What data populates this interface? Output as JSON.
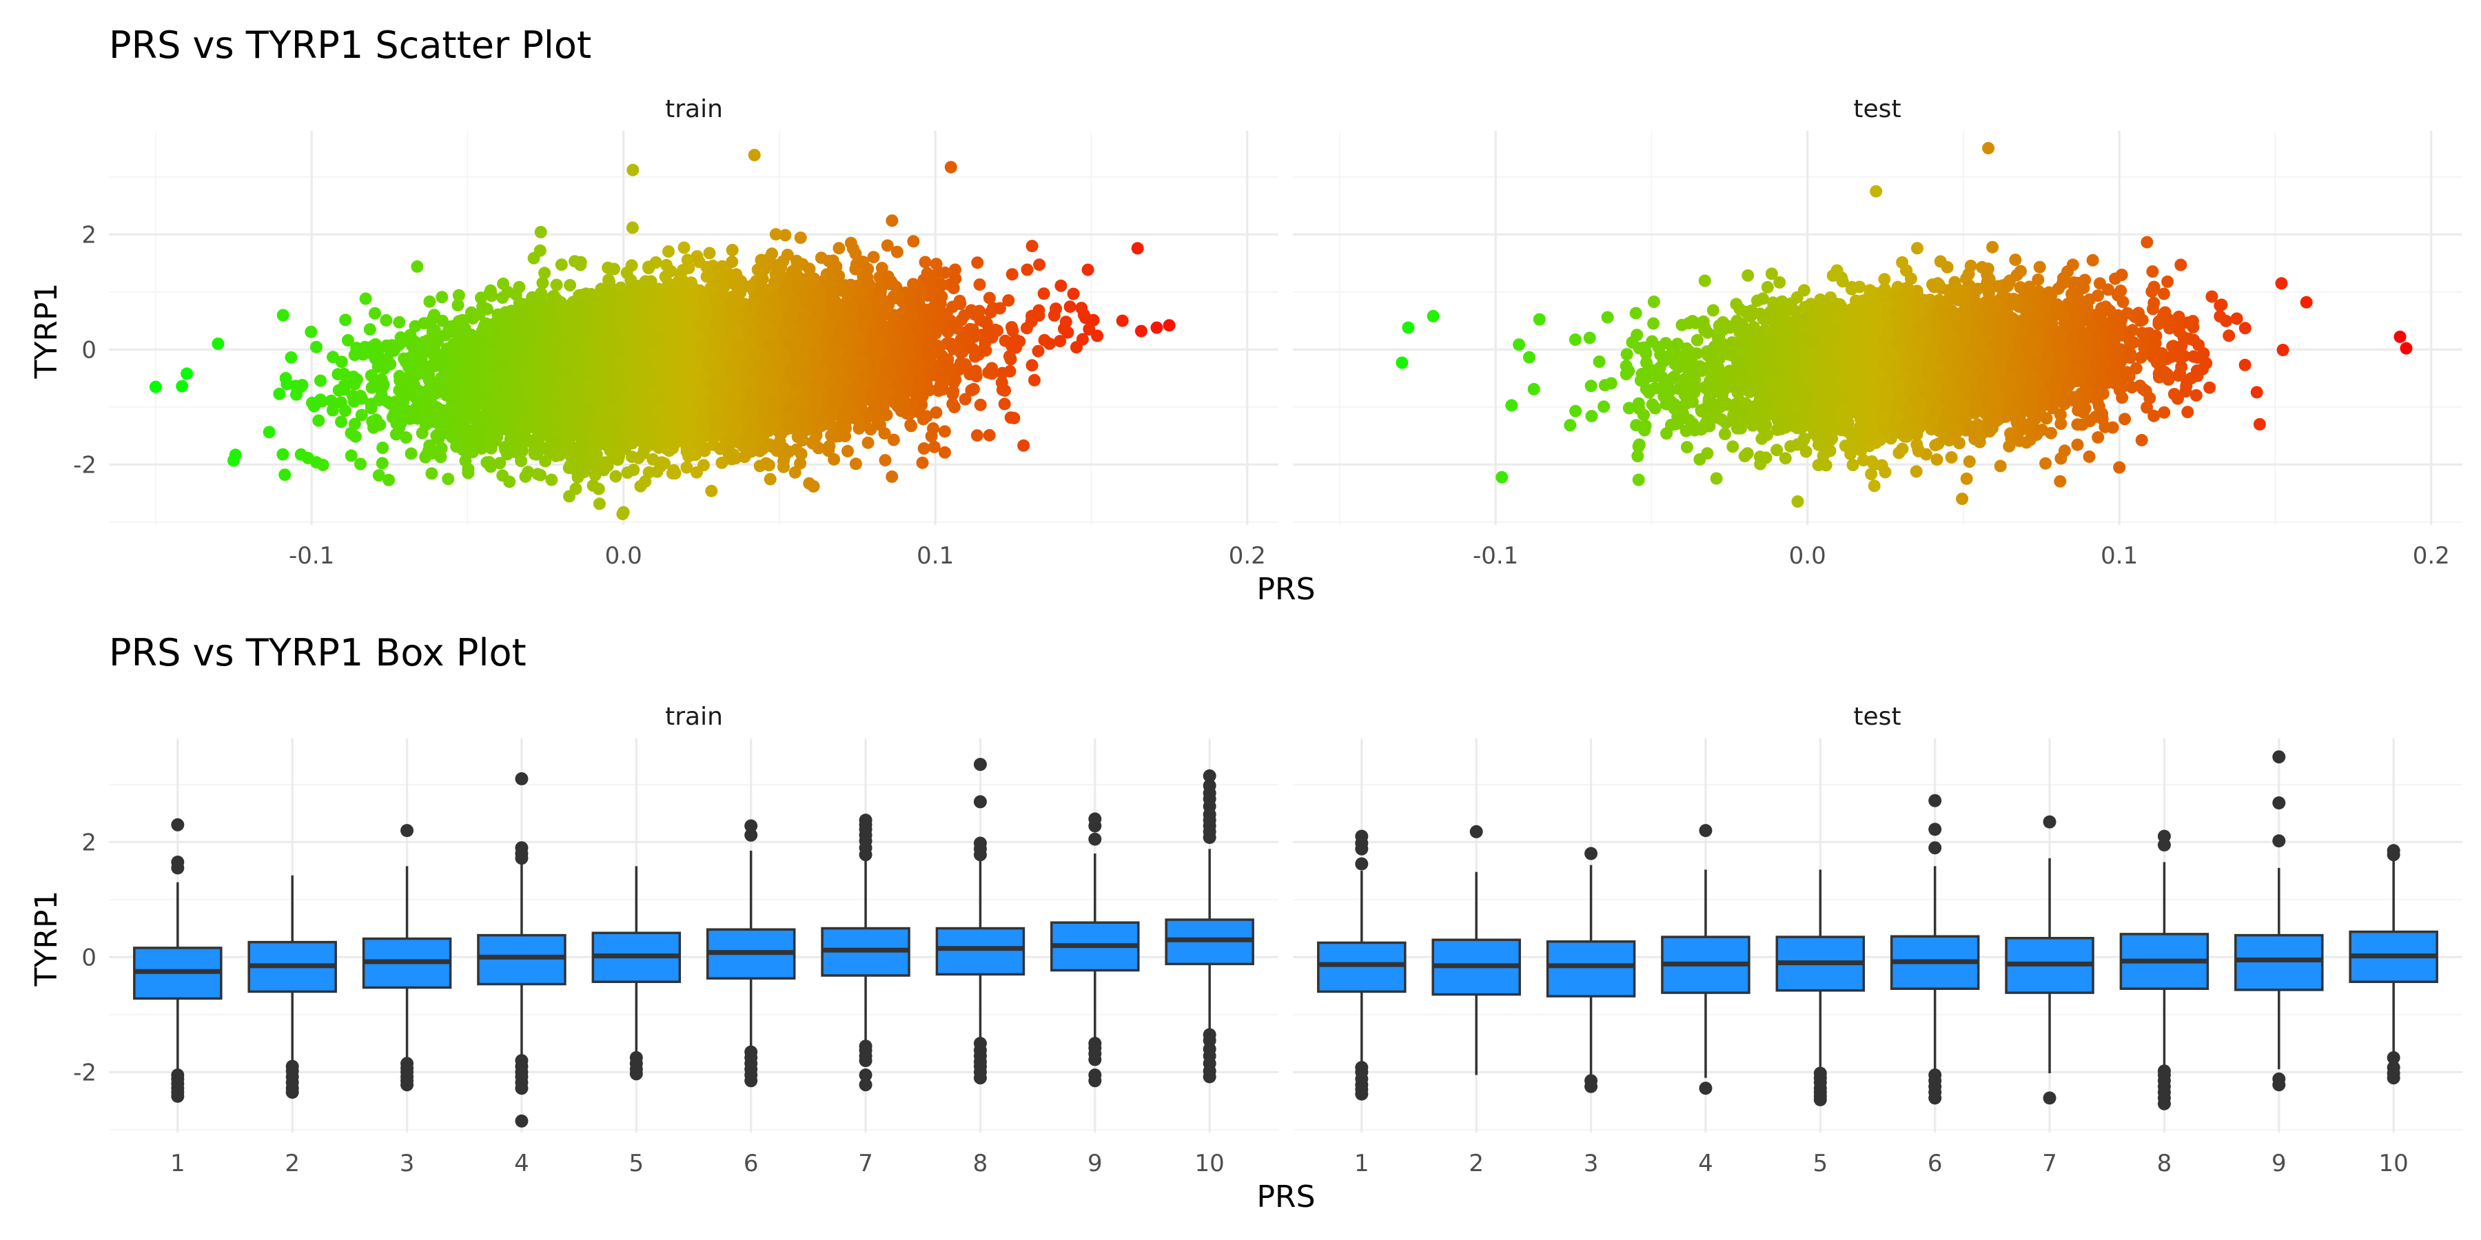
{
  "chart_data": [
    {
      "type": "scatter",
      "title": "PRS vs TYRP1 Scatter Plot",
      "xlabel": "PRS",
      "ylabel": "TYRP1",
      "facets": [
        "train",
        "test"
      ],
      "xlim": [
        -0.165,
        0.21
      ],
      "ylim": [
        -3.05,
        3.8
      ],
      "x_ticks": [
        -0.1,
        0.0,
        0.1,
        0.2
      ],
      "x_tick_labels": [
        "-0.1",
        "0.0",
        "0.1",
        "0.2"
      ],
      "y_ticks": [
        -2,
        0,
        2
      ],
      "y_tick_labels": [
        "-2",
        "0",
        "2"
      ],
      "grid": true,
      "color_scale": {
        "low": "#00ff00",
        "mid": "#c8b400",
        "high": "#ff0000",
        "mapped_to": "PRS"
      },
      "point_color": "#00ff00",
      "series": [
        {
          "facet": "train",
          "approx_n": 9000,
          "x_mean": 0.02,
          "x_sd": 0.04,
          "trend": {
            "slope": 4.2,
            "intercept": -0.35
          },
          "y_sd": 0.65,
          "extreme_points": [
            [
              -0.15,
              -0.65
            ],
            [
              -0.14,
              -0.42
            ],
            [
              -0.13,
              0.1
            ],
            [
              -0.125,
              -1.93
            ],
            [
              0.0,
              -2.83
            ],
            [
              0.003,
              3.12
            ],
            [
              0.042,
              3.38
            ],
            [
              0.105,
              3.17
            ],
            [
              0.171,
              0.38
            ],
            [
              0.175,
              0.42
            ],
            [
              0.166,
              0.32
            ],
            [
              0.16,
              0.5
            ]
          ]
        },
        {
          "facet": "test",
          "approx_n": 4500,
          "x_mean": 0.035,
          "x_sd": 0.035,
          "trend": {
            "slope": 3.8,
            "intercept": -0.4
          },
          "y_sd": 0.6,
          "extreme_points": [
            [
              -0.13,
              -0.23
            ],
            [
              -0.128,
              0.38
            ],
            [
              -0.12,
              0.58
            ],
            [
              -0.098,
              -2.22
            ],
            [
              0.058,
              3.5
            ],
            [
              0.022,
              2.75
            ],
            [
              0.152,
              1.15
            ],
            [
              0.16,
              0.82
            ],
            [
              0.19,
              0.22
            ],
            [
              0.192,
              0.02
            ],
            [
              0.145,
              -1.3
            ],
            [
              0.1,
              -2.05
            ]
          ]
        }
      ]
    },
    {
      "type": "box",
      "title": "PRS vs TYRP1 Box Plot",
      "xlabel": "PRS",
      "ylabel": "TYRP1",
      "facets": [
        "train",
        "test"
      ],
      "categories": [
        "1",
        "2",
        "3",
        "4",
        "5",
        "6",
        "7",
        "8",
        "9",
        "10"
      ],
      "ylim": [
        -3.05,
        3.8
      ],
      "y_ticks": [
        -2,
        0,
        2
      ],
      "y_tick_labels": [
        "-2",
        "0",
        "2"
      ],
      "grid": true,
      "box_fill": "#1e90ff",
      "box_line": "#333333",
      "series": [
        {
          "facet": "train",
          "boxes": [
            {
              "q1": -0.72,
              "median": -0.25,
              "q3": 0.16,
              "lower": -1.98,
              "upper": 1.3,
              "outliers": [
                2.3,
                1.65,
                1.55,
                -2.05,
                -2.12,
                -2.2,
                -2.28,
                -2.35,
                -2.42
              ]
            },
            {
              "q1": -0.6,
              "median": -0.15,
              "q3": 0.26,
              "lower": -1.83,
              "upper": 1.42,
              "outliers": [
                -1.9,
                -1.98,
                -2.08,
                -2.18,
                -2.28,
                -2.35
              ]
            },
            {
              "q1": -0.53,
              "median": -0.08,
              "q3": 0.32,
              "lower": -1.8,
              "upper": 1.58,
              "outliers": [
                2.2,
                -1.85,
                -1.93,
                -2.0,
                -2.08,
                -2.15,
                -2.22
              ]
            },
            {
              "q1": -0.47,
              "median": 0.0,
              "q3": 0.38,
              "lower": -1.75,
              "upper": 1.65,
              "outliers": [
                3.1,
                1.9,
                1.8,
                1.72,
                -1.8,
                -1.9,
                -2.0,
                -2.08,
                -2.18,
                -2.28,
                -2.85
              ]
            },
            {
              "q1": -0.43,
              "median": 0.02,
              "q3": 0.42,
              "lower": -1.7,
              "upper": 1.58,
              "outliers": [
                -1.75,
                -1.85,
                -1.95,
                -2.03
              ]
            },
            {
              "q1": -0.37,
              "median": 0.08,
              "q3": 0.48,
              "lower": -1.6,
              "upper": 1.85,
              "outliers": [
                2.28,
                2.12,
                -1.65,
                -1.75,
                -1.85,
                -1.95,
                -2.05,
                -2.15
              ]
            },
            {
              "q1": -0.32,
              "median": 0.12,
              "q3": 0.5,
              "lower": -1.5,
              "upper": 1.72,
              "outliers": [
                2.38,
                2.3,
                2.22,
                2.12,
                2.02,
                1.9,
                1.78,
                -1.55,
                -1.62,
                -1.72,
                -1.8,
                -2.05,
                -2.22
              ]
            },
            {
              "q1": -0.3,
              "median": 0.15,
              "q3": 0.5,
              "lower": -1.45,
              "upper": 1.7,
              "outliers": [
                3.35,
                2.7,
                1.98,
                1.88,
                1.78,
                -1.5,
                -1.62,
                -1.72,
                -1.82,
                -1.9,
                -2.0,
                -2.1
              ]
            },
            {
              "q1": -0.23,
              "median": 0.2,
              "q3": 0.6,
              "lower": -1.45,
              "upper": 1.8,
              "outliers": [
                2.4,
                2.28,
                2.05,
                -1.5,
                -1.58,
                -1.68,
                -1.78,
                -2.05,
                -2.15
              ]
            },
            {
              "q1": -0.12,
              "median": 0.3,
              "q3": 0.65,
              "lower": -1.3,
              "upper": 1.88,
              "outliers": [
                3.15,
                2.98,
                2.85,
                2.75,
                2.62,
                2.48,
                2.38,
                2.28,
                2.18,
                2.08,
                -1.35,
                -1.45,
                -1.6,
                -1.72,
                -1.85,
                -1.98,
                -2.08
              ]
            }
          ]
        },
        {
          "facet": "test",
          "boxes": [
            {
              "q1": -0.6,
              "median": -0.13,
              "q3": 0.25,
              "lower": -1.85,
              "upper": 1.5,
              "outliers": [
                2.1,
                1.98,
                1.88,
                1.62,
                -1.92,
                -2.0,
                -2.12,
                -2.22,
                -2.3,
                -2.38
              ]
            },
            {
              "q1": -0.65,
              "median": -0.15,
              "q3": 0.3,
              "lower": -2.05,
              "upper": 1.48,
              "outliers": [
                2.18
              ]
            },
            {
              "q1": -0.68,
              "median": -0.15,
              "q3": 0.27,
              "lower": -2.05,
              "upper": 1.6,
              "outliers": [
                1.8,
                -2.15,
                -2.25
              ]
            },
            {
              "q1": -0.62,
              "median": -0.12,
              "q3": 0.35,
              "lower": -2.1,
              "upper": 1.52,
              "outliers": [
                2.2,
                -2.28
              ]
            },
            {
              "q1": -0.58,
              "median": -0.1,
              "q3": 0.35,
              "lower": -1.95,
              "upper": 1.52,
              "outliers": [
                -2.02,
                -2.1,
                -2.18,
                -2.28,
                -2.35,
                -2.42,
                -2.48
              ]
            },
            {
              "q1": -0.55,
              "median": -0.08,
              "q3": 0.36,
              "lower": -1.98,
              "upper": 1.58,
              "outliers": [
                2.72,
                2.22,
                1.9,
                -2.05,
                -2.15,
                -2.25,
                -2.35,
                -2.45
              ]
            },
            {
              "q1": -0.62,
              "median": -0.12,
              "q3": 0.33,
              "lower": -2.02,
              "upper": 1.72,
              "outliers": [
                2.35,
                -2.45
              ]
            },
            {
              "q1": -0.55,
              "median": -0.07,
              "q3": 0.4,
              "lower": -1.9,
              "upper": 1.65,
              "outliers": [
                2.1,
                1.95,
                -1.98,
                -2.05,
                -2.15,
                -2.25,
                -2.35,
                -2.45,
                -2.55
              ]
            },
            {
              "q1": -0.57,
              "median": -0.05,
              "q3": 0.38,
              "lower": -1.95,
              "upper": 1.55,
              "outliers": [
                3.48,
                2.68,
                2.02,
                -2.12,
                -2.22
              ]
            },
            {
              "q1": -0.43,
              "median": 0.02,
              "q3": 0.44,
              "lower": -1.7,
              "upper": 1.78,
              "outliers": [
                1.85,
                1.78,
                -1.75,
                -1.92,
                -2.02,
                -2.1
              ]
            }
          ]
        }
      ]
    }
  ]
}
